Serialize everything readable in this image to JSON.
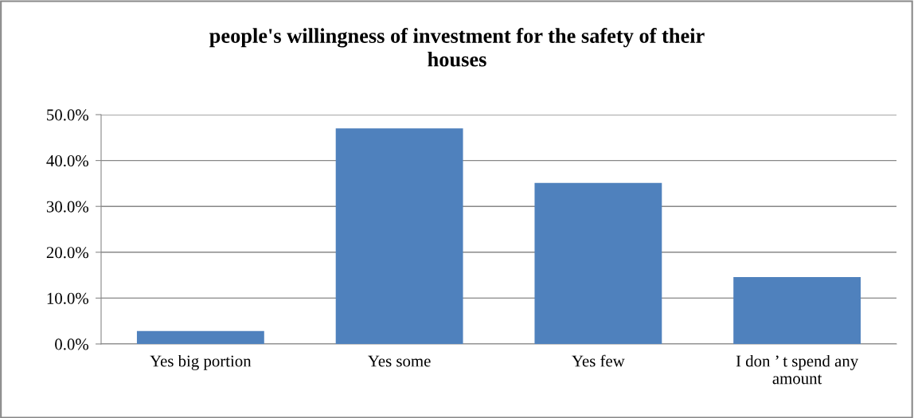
{
  "chart_data": {
    "type": "bar",
    "title": "people's willingness of investment for the safety of their\nhouses",
    "categories": [
      "Yes big portion",
      "Yes some",
      "Yes few",
      "I don ’ t spend any\namount"
    ],
    "values": [
      2.8,
      47.0,
      35.1,
      14.6
    ],
    "color": "#4f81bd",
    "ylim": [
      0,
      50
    ],
    "yticks": [
      {
        "value": 0,
        "label": "0.0%"
      },
      {
        "value": 10,
        "label": "10.0%"
      },
      {
        "value": 20,
        "label": "20.0%"
      },
      {
        "value": 30,
        "label": "30.0%"
      },
      {
        "value": 40,
        "label": "40.0%"
      },
      {
        "value": 50,
        "label": "50.0%"
      }
    ],
    "grid": "y",
    "legend": false
  }
}
